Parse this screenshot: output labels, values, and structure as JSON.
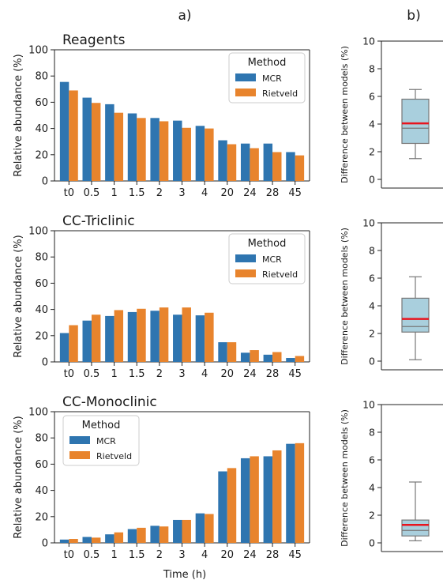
{
  "panel_labels": {
    "a": "a)",
    "b": "b)"
  },
  "x_label": "Time (h)",
  "colors": {
    "MCR": "#2e75b0",
    "Rietveld": "#e8842d",
    "box_fill": "#a9cfdd",
    "box_edge": "#777777",
    "mean_line": "#e8141e"
  },
  "chart_data": [
    {
      "type": "bar",
      "title": "Reagents",
      "ylabel": "Relative abundance (%)",
      "xlabel": "",
      "ylim": [
        0,
        100
      ],
      "yticks": [
        0,
        20,
        40,
        60,
        80,
        100
      ],
      "categories": [
        "t0",
        "0.5",
        "1",
        "1.5",
        "2",
        "3",
        "4",
        "20",
        "24",
        "28",
        "45"
      ],
      "legend": {
        "title": "Method",
        "position": "top-right"
      },
      "series": [
        {
          "name": "MCR",
          "values": [
            75.5,
            63.5,
            58.5,
            51.5,
            48,
            46,
            42,
            31,
            28.5,
            28.5,
            22
          ]
        },
        {
          "name": "Rietveld",
          "values": [
            69,
            59.5,
            52,
            48,
            45.5,
            40.5,
            40,
            28,
            25,
            22,
            19.5
          ]
        }
      ]
    },
    {
      "type": "bar",
      "title": "CC-Triclinic",
      "ylabel": "Relative abundance (%)",
      "xlabel": "",
      "ylim": [
        0,
        100
      ],
      "yticks": [
        0,
        20,
        40,
        60,
        80,
        100
      ],
      "categories": [
        "t0",
        "0.5",
        "1",
        "1.5",
        "2",
        "3",
        "4",
        "20",
        "24",
        "28",
        "45"
      ],
      "legend": {
        "title": "Method",
        "position": "top-right"
      },
      "series": [
        {
          "name": "MCR",
          "values": [
            22,
            31.5,
            35,
            38,
            39,
            36,
            35.5,
            15,
            7,
            5.5,
            3
          ]
        },
        {
          "name": "Rietveld",
          "values": [
            28,
            36,
            39.5,
            40.5,
            41.5,
            41.5,
            37.5,
            15,
            9,
            7.5,
            4.5
          ]
        }
      ]
    },
    {
      "type": "bar",
      "title": "CC-Monoclinic",
      "ylabel": "Relative abundance (%)",
      "xlabel": "Time (h)",
      "ylim": [
        0,
        100
      ],
      "yticks": [
        0,
        20,
        40,
        60,
        80,
        100
      ],
      "categories": [
        "t0",
        "0.5",
        "1",
        "1.5",
        "2",
        "3",
        "4",
        "20",
        "24",
        "28",
        "45"
      ],
      "legend": {
        "title": "Method",
        "position": "top-left"
      },
      "series": [
        {
          "name": "MCR",
          "values": [
            2.5,
            4.5,
            6.5,
            10.5,
            13,
            17.5,
            22.5,
            54.5,
            64.5,
            66,
            75.5
          ]
        },
        {
          "name": "Rietveld",
          "values": [
            3,
            4,
            8,
            11.5,
            12.5,
            17.5,
            22,
            57,
            66,
            70.5,
            76
          ]
        }
      ]
    },
    {
      "type": "box",
      "ylabel": "Difference between models (%)",
      "ylim": [
        0,
        10
      ],
      "yticks": [
        0,
        2,
        4,
        6,
        8,
        10
      ],
      "whisker_low": 1.5,
      "q1": 2.6,
      "median": 3.7,
      "mean": 4.05,
      "q3": 5.8,
      "whisker_high": 6.5
    },
    {
      "type": "box",
      "ylabel": "Difference between models (%)",
      "ylim": [
        0,
        10
      ],
      "yticks": [
        0,
        2,
        4,
        6,
        8,
        10
      ],
      "whisker_low": 0.1,
      "q1": 2.1,
      "median": 2.5,
      "mean": 3.05,
      "q3": 4.55,
      "whisker_high": 6.1
    },
    {
      "type": "box",
      "ylabel": "Difference between models (%)",
      "ylim": [
        0,
        10
      ],
      "yticks": [
        0,
        2,
        4,
        6,
        8,
        10
      ],
      "whisker_low": 0.15,
      "q1": 0.5,
      "median": 0.9,
      "mean": 1.3,
      "q3": 1.65,
      "whisker_high": 4.4
    }
  ]
}
